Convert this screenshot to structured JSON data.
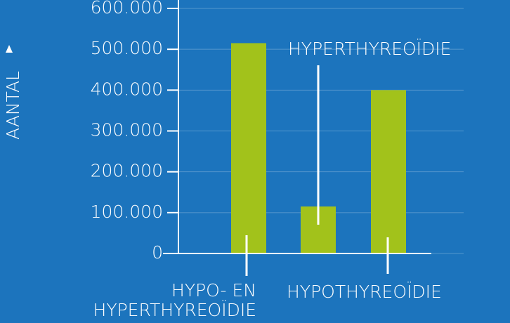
{
  "chart_data": {
    "type": "bar",
    "y_label": "AANTAL",
    "categories": [
      "HYPO- EN HYPERTHYREOÏDIE",
      "HYPERTHYREOÏDIE",
      "HYPOTHYREOÏDIE"
    ],
    "values": [
      515000,
      115000,
      400000
    ],
    "color": "#a2c21b",
    "ylim": [
      0,
      600000
    ],
    "yticks": [
      0,
      {
        "value": 100000,
        "label": "100.000"
      },
      {
        "value": 200000,
        "label": "200.000"
      },
      {
        "value": 300000,
        "label": "300.000"
      },
      {
        "value": 400000,
        "label": "400.000"
      },
      {
        "value": 500000,
        "label": "500.000"
      },
      {
        "value": 600000,
        "label": "600.000"
      }
    ],
    "grid": true
  }
}
